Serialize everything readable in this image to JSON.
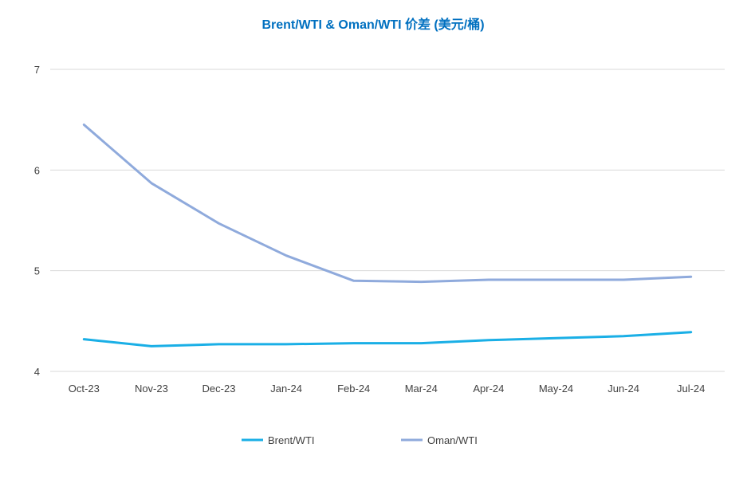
{
  "chart_data": {
    "type": "line",
    "title": "Brent/WTI & Oman/WTI 价差 (美元/桶)",
    "xlabel": "",
    "ylabel": "",
    "categories": [
      "Oct-23",
      "Nov-23",
      "Dec-23",
      "Jan-24",
      "Feb-24",
      "Mar-24",
      "Apr-24",
      "May-24",
      "Jun-24",
      "Jul-24"
    ],
    "ylim": [
      4,
      7
    ],
    "yticks": [
      4,
      5,
      6,
      7
    ],
    "grid": true,
    "legend_position": "bottom",
    "series": [
      {
        "name": "Brent/WTI",
        "color": "#1AAFE6",
        "values": [
          4.32,
          4.25,
          4.27,
          4.27,
          4.28,
          4.28,
          4.31,
          4.33,
          4.35,
          4.39
        ]
      },
      {
        "name": "Oman/WTI",
        "color": "#8FAADC",
        "values": [
          6.45,
          5.87,
          5.47,
          5.15,
          4.9,
          4.89,
          4.91,
          4.91,
          4.91,
          4.94
        ]
      }
    ],
    "title_color": "#0070C0",
    "grid_color": "#D9D9D9"
  }
}
